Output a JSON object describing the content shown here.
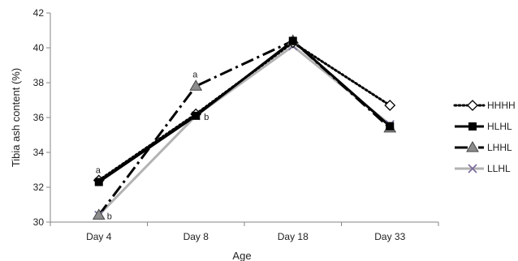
{
  "chart_data": {
    "type": "line",
    "title": "",
    "xlabel": "Age",
    "ylabel": "Tibia ash content (%)",
    "categories": [
      "Day 4",
      "Day 8",
      "Day 18",
      "Day 33"
    ],
    "ylim": [
      30,
      42
    ],
    "yticks": [
      30,
      32,
      34,
      36,
      38,
      40,
      42
    ],
    "grid": false,
    "legend_position": "right",
    "series": [
      {
        "name": "HHHH",
        "values": [
          32.4,
          36.2,
          40.3,
          36.7
        ],
        "color": "#000000",
        "dash": "dotted",
        "marker": "diamond-open"
      },
      {
        "name": "HLHL",
        "values": [
          32.3,
          36.1,
          40.4,
          35.5
        ],
        "color": "#000000",
        "dash": "solid",
        "marker": "square"
      },
      {
        "name": "LHHL",
        "values": [
          30.4,
          37.8,
          40.4,
          35.4
        ],
        "color": "#000000",
        "dash": "dashdot",
        "marker": "triangle"
      },
      {
        "name": "LLHL",
        "values": [
          30.4,
          36.1,
          40.1,
          35.6
        ],
        "color": "#b3b3b3",
        "dash": "solid",
        "marker": "x"
      }
    ],
    "annotations": [
      {
        "text": "a",
        "category": "Day 4",
        "y": 32.3,
        "placement": "above"
      },
      {
        "text": "b",
        "category": "Day 4",
        "y": 30.4,
        "placement": "right"
      },
      {
        "text": "a",
        "category": "Day 8",
        "y": 37.8,
        "placement": "above"
      },
      {
        "text": "b",
        "category": "Day 8",
        "y": 36.1,
        "placement": "right"
      }
    ]
  }
}
